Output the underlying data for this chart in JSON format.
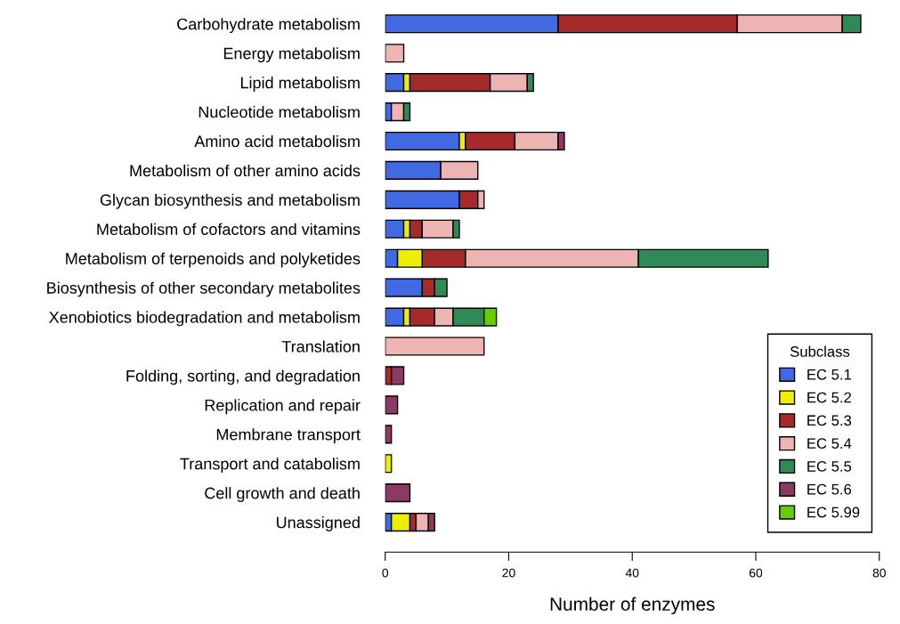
{
  "chart_data": {
    "type": "bar",
    "orientation": "horizontal",
    "stacked": true,
    "xlabel": "Number of enzymes",
    "legend_title": "Subclass",
    "legend": "bottom right",
    "categories": [
      "Carbohydrate metabolism",
      "Energy metabolism",
      "Lipid metabolism",
      "Nucleotide metabolism",
      "Amino acid metabolism",
      "Metabolism of other amino acids",
      "Glycan biosynthesis and metabolism",
      "Metabolism of cofactors and vitamins",
      "Metabolism of terpenoids and polyketides",
      "Biosynthesis of other secondary metabolites",
      "Xenobiotics biodegradation and metabolism",
      "Translation",
      "Folding, sorting, and degradation",
      "Replication and repair",
      "Membrane transport",
      "Transport and catabolism",
      "Cell growth and death",
      "Unassigned"
    ],
    "series": [
      {
        "name": "EC 5.1",
        "color": "#4169e1",
        "values": [
          28,
          0,
          3,
          1,
          12,
          9,
          12,
          3,
          2,
          6,
          3,
          0,
          0,
          0,
          0,
          0,
          0,
          1
        ]
      },
      {
        "name": "EC 5.2",
        "color": "#eeee00",
        "values": [
          0,
          0,
          1,
          0,
          1,
          0,
          0,
          1,
          4,
          0,
          1,
          0,
          0,
          0,
          0,
          1,
          0,
          3
        ]
      },
      {
        "name": "EC 5.3",
        "color": "#a52a2a",
        "values": [
          29,
          0,
          13,
          0,
          8,
          0,
          3,
          2,
          7,
          2,
          4,
          0,
          1,
          0,
          0,
          0,
          0,
          1
        ]
      },
      {
        "name": "EC 5.4",
        "color": "#eeb4b4",
        "values": [
          17,
          3,
          6,
          2,
          7,
          6,
          1,
          5,
          28,
          0,
          3,
          16,
          0,
          0,
          0,
          0,
          0,
          2
        ]
      },
      {
        "name": "EC 5.5",
        "color": "#2e8b57",
        "values": [
          3,
          0,
          1,
          1,
          0,
          0,
          0,
          1,
          21,
          2,
          5,
          0,
          0,
          0,
          0,
          0,
          0,
          0
        ]
      },
      {
        "name": "EC 5.6",
        "color": "#8b3a62",
        "values": [
          0,
          0,
          0,
          0,
          1,
          0,
          0,
          0,
          0,
          0,
          0,
          0,
          2,
          2,
          1,
          0,
          4,
          1
        ]
      },
      {
        "name": "EC 5.99",
        "color": "#66cd00",
        "values": [
          0,
          0,
          0,
          0,
          0,
          0,
          0,
          0,
          0,
          0,
          2,
          0,
          0,
          0,
          0,
          0,
          0,
          0
        ]
      }
    ],
    "xlim": [
      0,
      80
    ],
    "xticks": [
      0,
      20,
      40,
      60,
      80
    ],
    "grid": false
  }
}
